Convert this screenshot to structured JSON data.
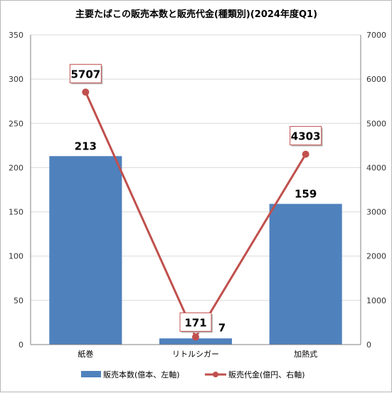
{
  "chart_data": {
    "type": "bar",
    "title": "主要たばこの販売本数と販売代金(種類別)(2024年度Q1)",
    "categories": [
      "紙巻",
      "リトルシガー",
      "加熱式"
    ],
    "series": [
      {
        "name": "販売本数(億本、左軸)",
        "type": "bar",
        "axis": "left",
        "color": "#4f81bd",
        "values": [
          213,
          7,
          159
        ],
        "labels": [
          "213",
          "7",
          "159"
        ]
      },
      {
        "name": "販売代金(億円、右軸)",
        "type": "line",
        "axis": "right",
        "color": "#c0504d",
        "values": [
          5707,
          171,
          4303
        ],
        "labels": [
          "5707",
          "171",
          "4303"
        ]
      }
    ],
    "y_left": {
      "min": 0,
      "max": 350,
      "step": 50,
      "ticks": [
        "0",
        "50",
        "100",
        "150",
        "200",
        "250",
        "300",
        "350"
      ]
    },
    "y_right": {
      "min": 0,
      "max": 7000,
      "step": 1000,
      "ticks": [
        "0",
        "1000",
        "2000",
        "3000",
        "4000",
        "5000",
        "6000",
        "7000"
      ]
    },
    "grid": true,
    "legend_position": "bottom"
  }
}
